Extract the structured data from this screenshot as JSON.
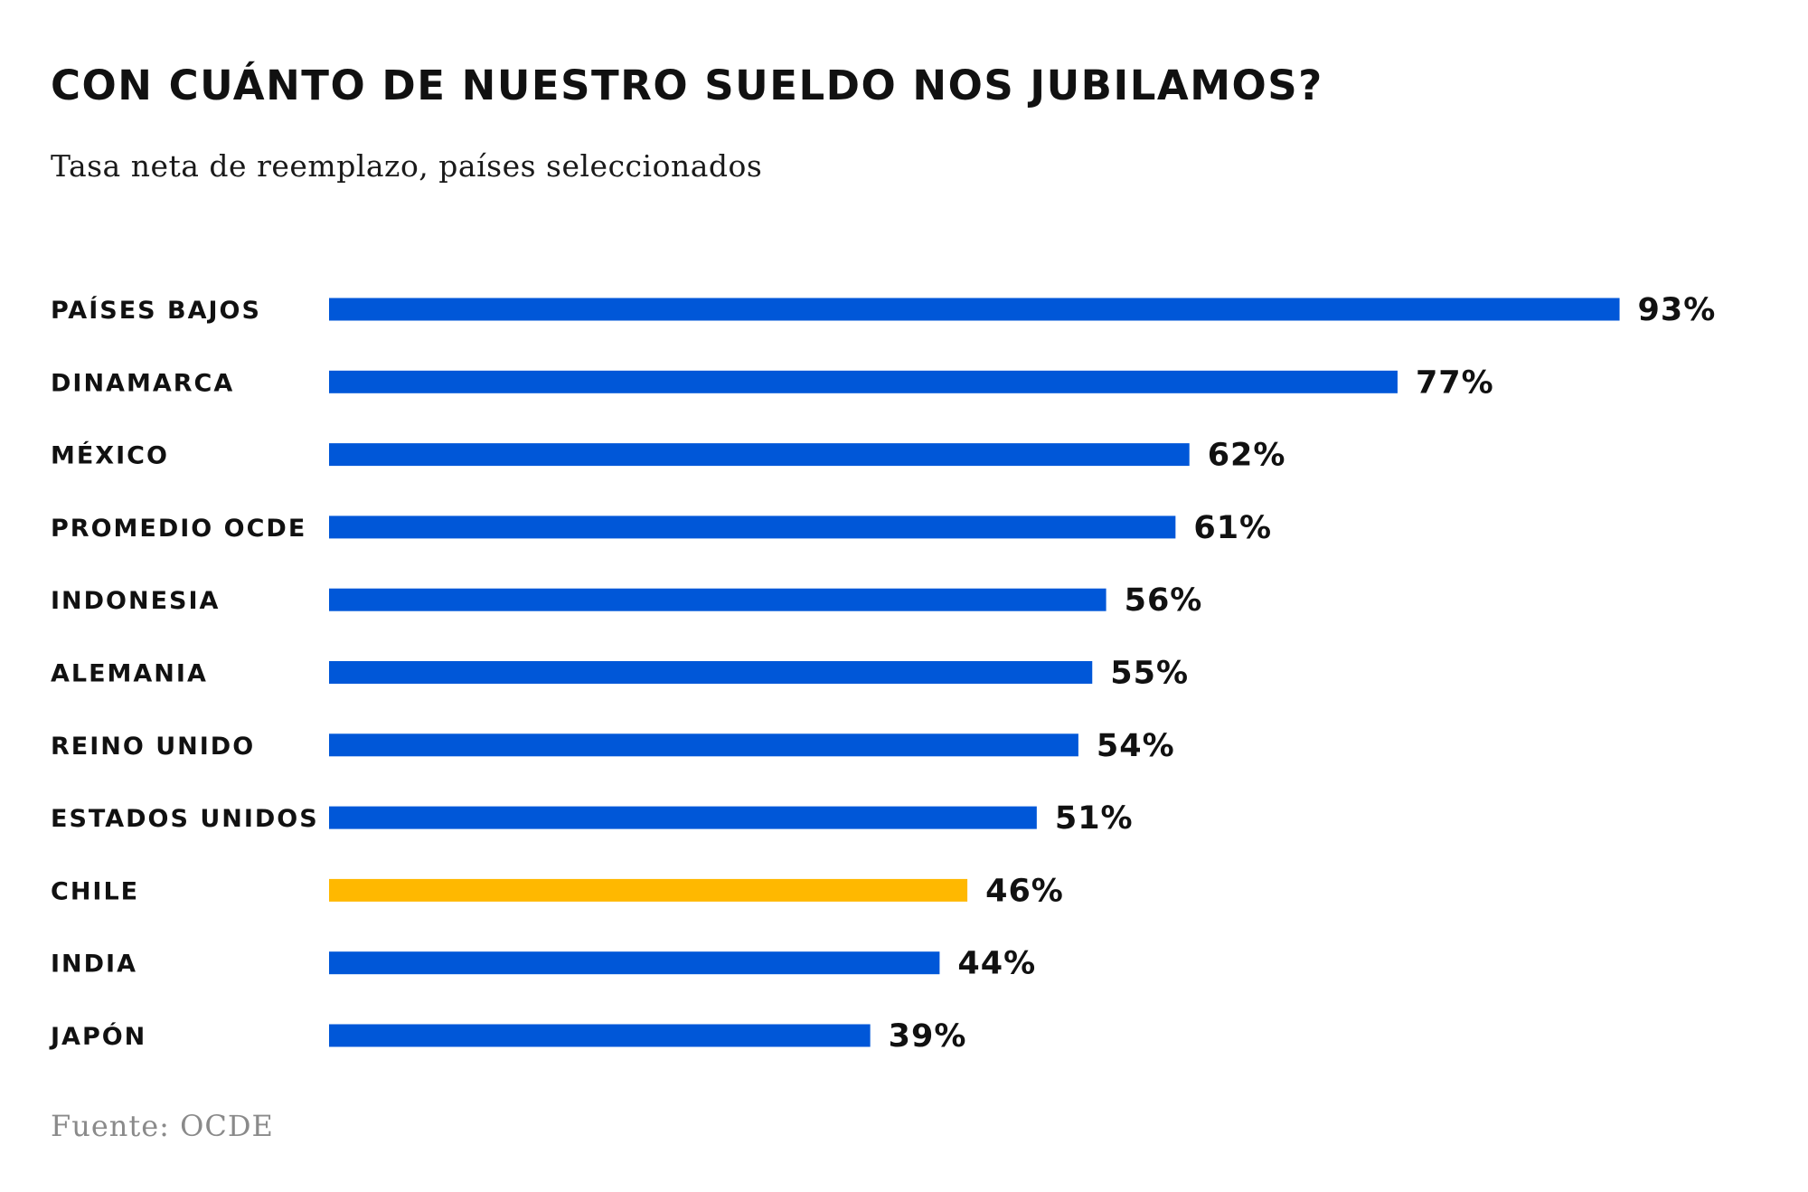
{
  "chart_data": {
    "type": "bar",
    "orientation": "horizontal",
    "title": "CON CUÁNTO DE NUESTRO SUELDO NOS JUBILAMOS?",
    "subtitle": "Tasa neta de reemplazo, países seleccionados",
    "source": "Fuente: OCDE",
    "xlabel": "",
    "ylabel": "",
    "xlim": [
      0,
      100
    ],
    "grid": false,
    "legend": "none",
    "value_suffix": "%",
    "categories": [
      "PAÍSES BAJOS",
      "DINAMARCA",
      "MÉXICO",
      "PROMEDIO OCDE",
      "INDONESIA",
      "ALEMANIA",
      "REINO UNIDO",
      "ESTADOS UNIDOS",
      "CHILE",
      "INDIA",
      "JAPÓN"
    ],
    "values": [
      93,
      77,
      62,
      61,
      56,
      55,
      54,
      51,
      46,
      44,
      39
    ],
    "value_labels": [
      "93%",
      "77%",
      "62%",
      "61%",
      "56%",
      "55%",
      "54%",
      "51%",
      "46%",
      "44%",
      "39%"
    ],
    "colors": {
      "default": "#0057d8",
      "highlight": "#ffb800"
    },
    "highlight_category": "CHILE"
  }
}
